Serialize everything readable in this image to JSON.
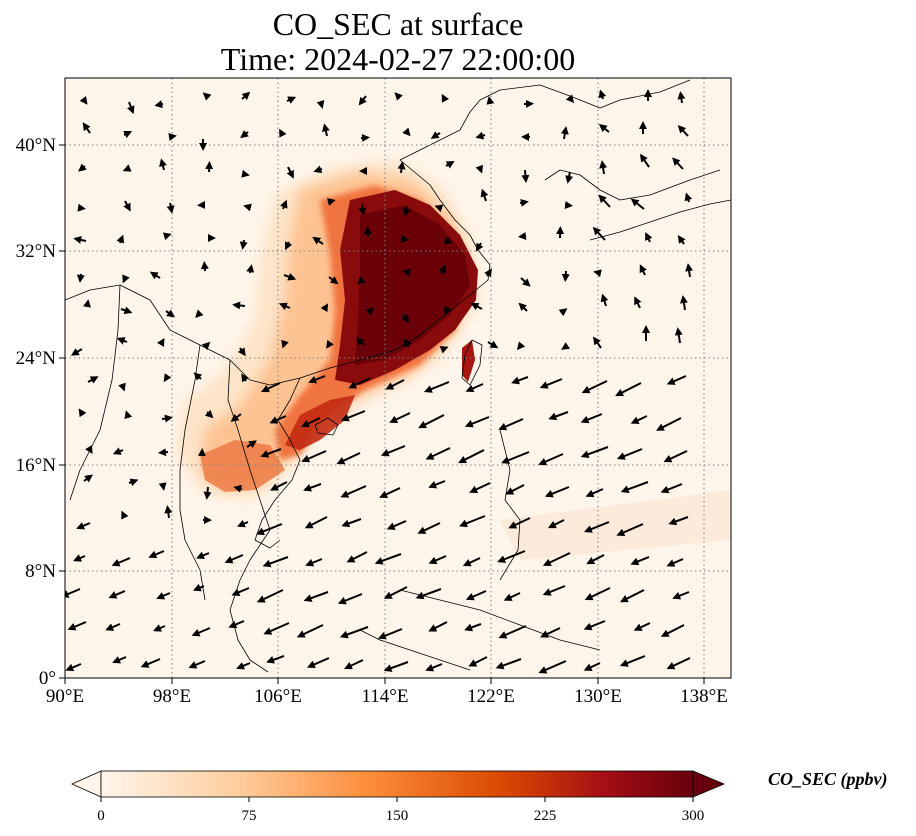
{
  "title_line1": "CO_SEC at surface",
  "title_line2": "Time: 2024-02-27 22:00:00",
  "lon_ticks": [
    "90°E",
    "98°E",
    "106°E",
    "114°E",
    "122°E",
    "130°E",
    "138°E"
  ],
  "lat_ticks": [
    "0°",
    "8°N",
    "16°N",
    "24°N",
    "32°N",
    "40°N"
  ],
  "colorbar": {
    "label": "CO_SEC (ppbv)",
    "ticks": [
      "0",
      "75",
      "150",
      "225",
      "300"
    ],
    "colors": [
      "#fff5eb",
      "#fdd0a2",
      "#fd8d3c",
      "#d94801",
      "#a50f15",
      "#67000d"
    ]
  },
  "map": {
    "extent": {
      "lon": [
        90,
        140
      ],
      "lat": [
        0,
        45
      ]
    },
    "background_color": "#fff5eb"
  }
}
